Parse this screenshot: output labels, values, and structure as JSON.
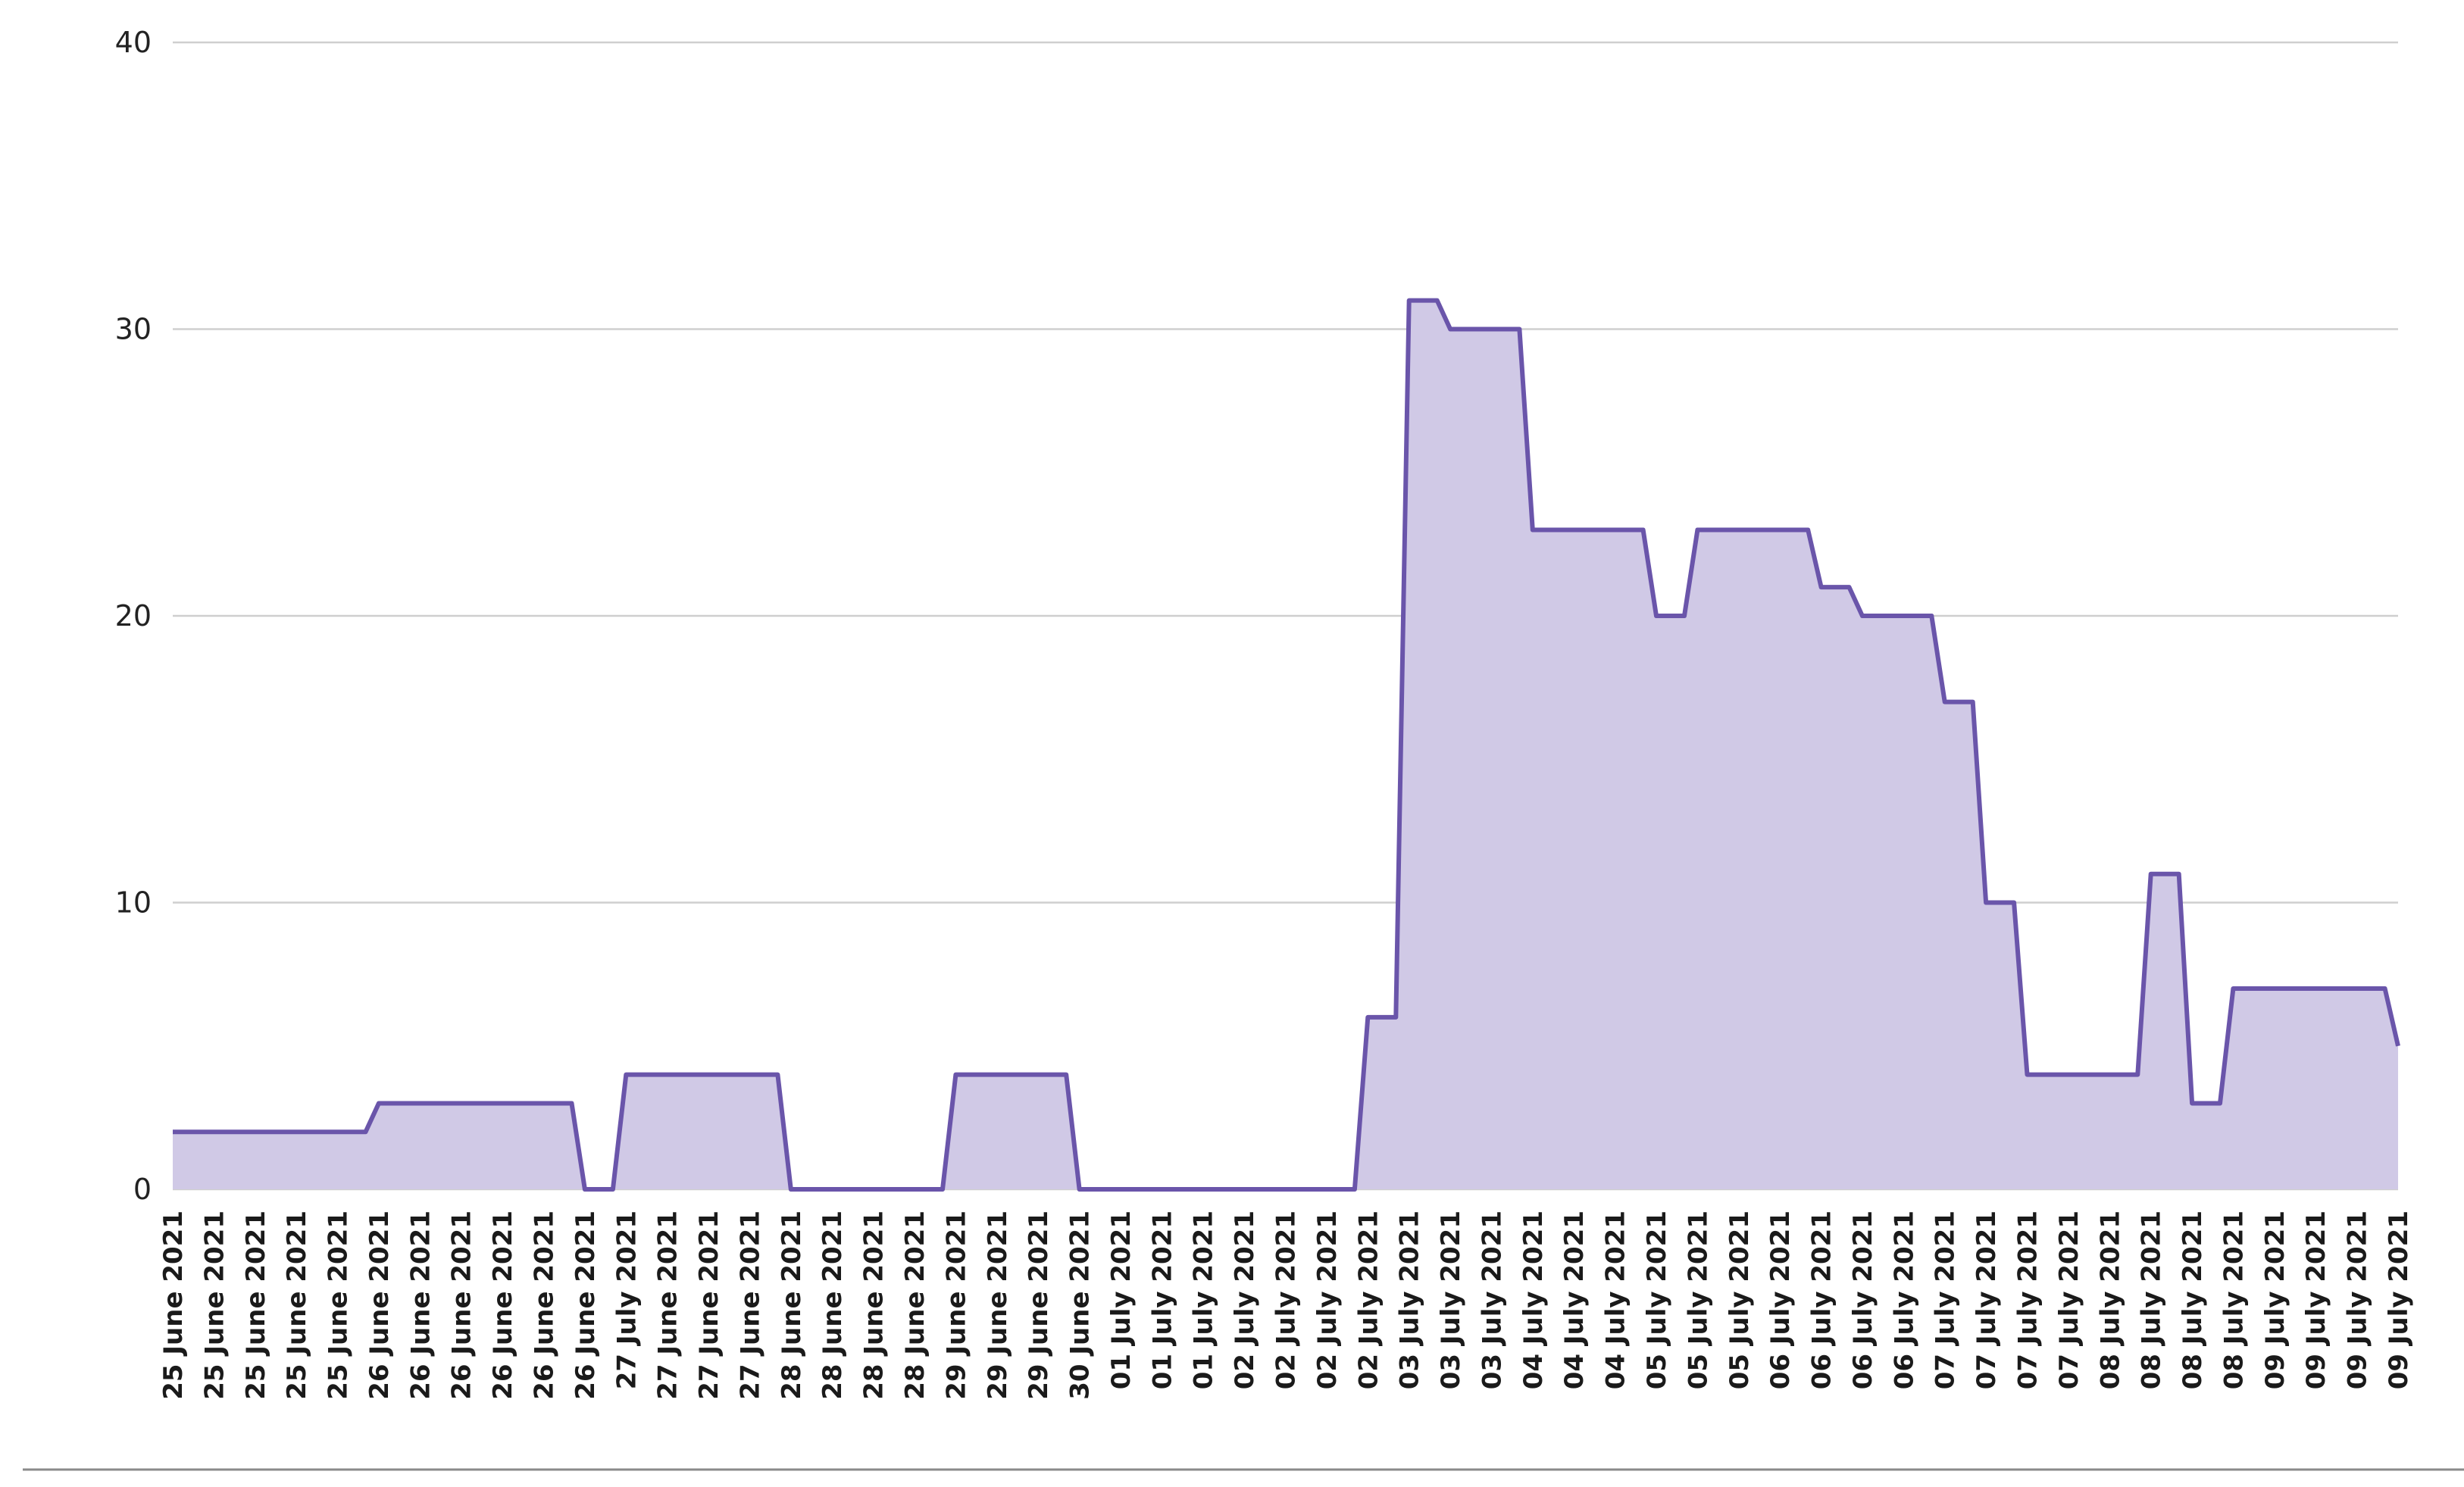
{
  "chart_data": {
    "type": "area",
    "title": "",
    "xlabel": "",
    "ylabel": "",
    "ylim": [
      0,
      40
    ],
    "yticks": [
      0,
      10,
      20,
      30,
      40
    ],
    "grid": true,
    "legend": "none",
    "colors": {
      "line": "#6a55aa",
      "fill": "#d0c9e6",
      "grid": "#cfcfcf",
      "axis": "#999999"
    },
    "categories": [
      "25 June 2021",
      "25 June 2021",
      "25 June 2021",
      "25 June 2021",
      "25 June 2021",
      "26 June 2021",
      "26 June 2021",
      "26 June 2021",
      "26 June 2021",
      "26 June 2021",
      "26 June 2021",
      "27 July 2021",
      "27 June 2021",
      "27 June 2021",
      "27 June 2021",
      "28 June 2021",
      "28 June 2021",
      "28 June 2021",
      "28 June 2021",
      "29 June 2021",
      "29 June 2021",
      "29 June 2021",
      "30 June 2021",
      "01 July 2021",
      "01 July 2021",
      "01 July 2021",
      "02 July 2021",
      "02 July 2021",
      "02 July 2021",
      "02 July 2021",
      "03 July 2021",
      "03 July 2021",
      "03 July 2021",
      "04 July 2021",
      "04 July 2021",
      "04 July 2021",
      "05 July 2021",
      "05 July 2021",
      "05 July 2021",
      "06 July 2021",
      "06 July 2021",
      "06 July 2021",
      "06 July 2021",
      "07 July 2021",
      "07 July 2021",
      "07 July 2021",
      "07 July 2021",
      "08 July 2021",
      "08 July 2021",
      "08 July 2021",
      "08 July 2021",
      "09 July 2021",
      "09 July 2021",
      "09 July 2021",
      "09 July 2021"
    ],
    "series": [
      {
        "values": [
          2,
          2,
          2,
          2,
          2,
          3,
          3,
          3,
          3,
          3,
          0,
          4,
          4,
          4,
          4,
          0,
          0,
          0,
          0,
          4,
          4,
          4,
          0,
          0,
          0,
          0,
          0,
          0,
          0,
          6,
          31,
          30,
          30,
          23,
          23,
          23,
          20,
          23,
          23,
          23,
          21,
          20,
          20,
          17,
          10,
          4,
          4,
          4,
          11,
          3,
          7,
          7,
          7,
          7,
          5
        ]
      }
    ]
  }
}
